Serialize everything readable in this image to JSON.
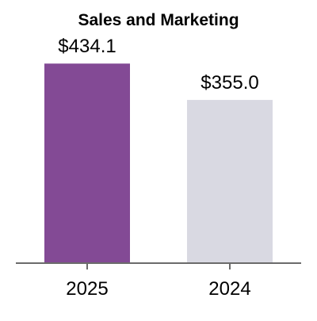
{
  "chart_data": {
    "type": "bar",
    "title": "Sales and Marketing",
    "categories": [
      "2025",
      "2024"
    ],
    "values": [
      434.1,
      355.0
    ],
    "value_labels": [
      "$434.1",
      "$355.0"
    ],
    "bar_colors": [
      "#834a95",
      "#d9d9e2"
    ],
    "axis_color": "#6b6b6b",
    "xlabel": "",
    "ylabel": "",
    "ylim": [
      0,
      500
    ],
    "grid": false,
    "legend": "none"
  }
}
